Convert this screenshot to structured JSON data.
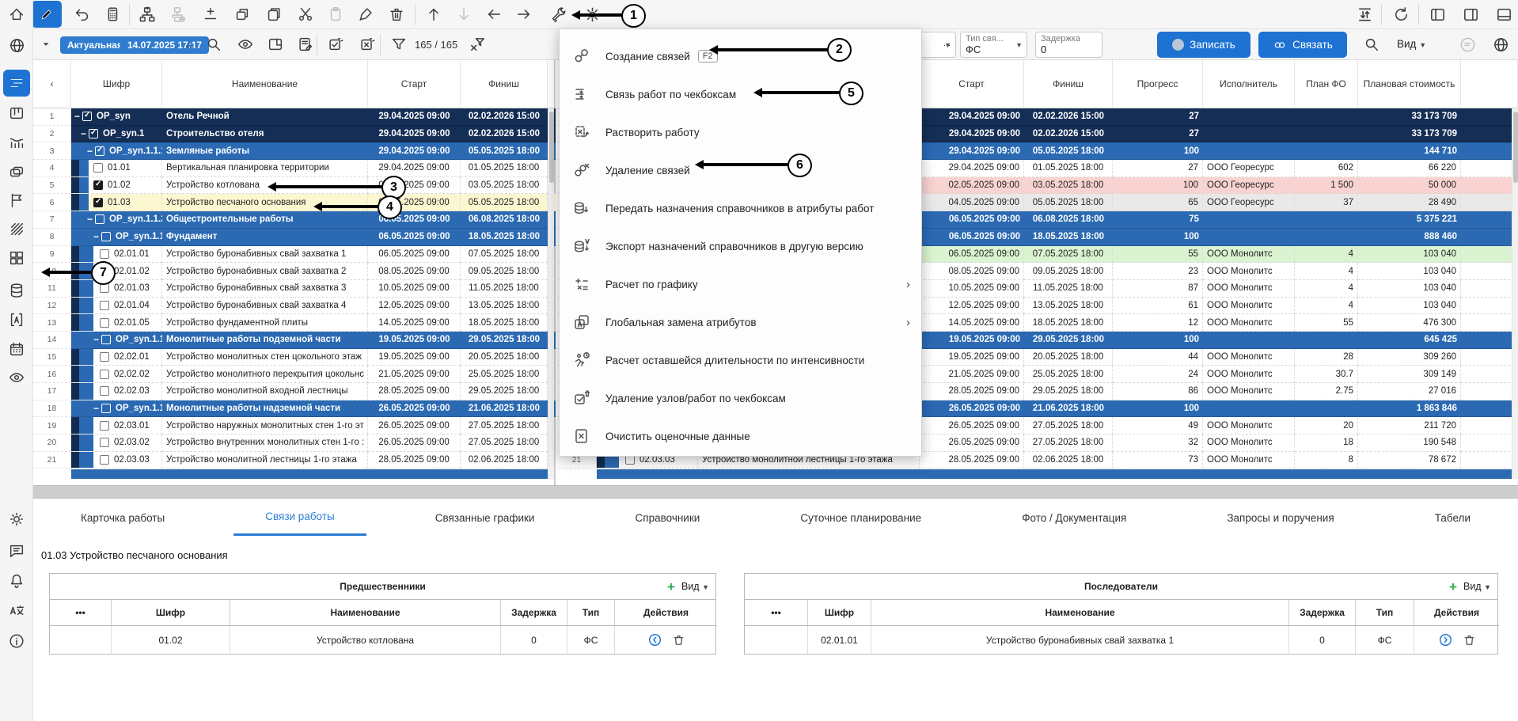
{
  "colors": {
    "accent": "#1d72d2",
    "row_dark": "#142e56",
    "row_group": "#2b6ab3",
    "highlight_yellow": "#fbf7d0",
    "highlight_pink": "#f8d3d1",
    "highlight_green": "#daf3d0",
    "highlight_gray": "#e9e9e9",
    "callout": "#000000"
  },
  "topbar": {
    "version_badge": "Актуальная",
    "date_badge": "14.07.2025 17:17",
    "truncated_label": "г...",
    "filter_count": "165 / 165",
    "combo_ellipsis": "...",
    "type_combo_label": "Тип свя...",
    "type_combo_value": "ФС",
    "delay_label": "Задержка",
    "delay_value": "0",
    "save_button": "Записать",
    "link_button": "Связать",
    "view_button": "Вид"
  },
  "menu": {
    "items": [
      {
        "label": "Создание связей",
        "shortcut": "F2",
        "icon": "chain",
        "submenu": false
      },
      {
        "label": "Связь работ по чекбоксам",
        "icon": "link-checkbox",
        "submenu": false
      },
      {
        "label": "Растворить работу",
        "icon": "dissolve",
        "submenu": false
      },
      {
        "label": "Удаление связей",
        "icon": "chain-x",
        "submenu": false
      },
      {
        "label": "Передать назначения справочников в атрибуты работ",
        "icon": "db-transfer",
        "submenu": false
      },
      {
        "label": "Экспорт назначений справочников в другую версию",
        "icon": "db-export",
        "submenu": false
      },
      {
        "label": "Расчет по графику",
        "icon": "calc-ops",
        "submenu": true
      },
      {
        "label": "Глобальная замена атрибутов",
        "icon": "replace-attr",
        "submenu": true
      },
      {
        "label": "Расчет оставшейся длительности по интенсивности",
        "icon": "runner-clock",
        "submenu": false
      },
      {
        "label": "Удаление узлов/работ по чекбоксам",
        "icon": "checkbox-trash",
        "submenu": false
      },
      {
        "label": "Очистить оценочные данные",
        "icon": "doc-clear",
        "submenu": false
      }
    ]
  },
  "table": {
    "left_headers": [
      "Шифр",
      "Наименование",
      "Старт",
      "Финиш"
    ],
    "right_headers": [
      "Старт",
      "Финиш",
      "Прогресс",
      "Исполнитель",
      "План ФО",
      "Плановая стоимость"
    ],
    "rows": [
      {
        "n": "1",
        "level": 0,
        "group": true,
        "checked": true,
        "code": "OP_syn",
        "name": "Отель Речной",
        "start": "29.04.2025 09:00",
        "finish": "02.02.2026 15:00",
        "progress": "27",
        "executor": "",
        "plan_fo": "",
        "cost": "33 173 709",
        "tone": "dark",
        "hl_left": "",
        "hl_right": ""
      },
      {
        "n": "2",
        "level": 1,
        "group": true,
        "checked": true,
        "code": "OP_syn.1",
        "name": "Строительство отеля",
        "start": "29.04.2025 09:00",
        "finish": "02.02.2026 15:00",
        "progress": "27",
        "executor": "",
        "plan_fo": "",
        "cost": "33 173 709",
        "tone": "dark",
        "hl_left": "",
        "hl_right": ""
      },
      {
        "n": "3",
        "level": 2,
        "group": true,
        "checked": true,
        "code": "OP_syn.1.1.1",
        "name": "Земляные работы",
        "start": "29.04.2025 09:00",
        "finish": "05.05.2025 18:00",
        "progress": "100",
        "executor": "",
        "plan_fo": "",
        "cost": "144 710",
        "tone": "mid",
        "hl_left": "",
        "hl_right": ""
      },
      {
        "n": "4",
        "level": 3,
        "group": false,
        "checked": false,
        "code": "01.01",
        "name": "Вертикальная планировка территории",
        "start": "29.04.2025 09:00",
        "finish": "01.05.2025 18:00",
        "progress": "27",
        "executor": "ООО Георесурс",
        "plan_fo": "602",
        "cost": "66 220",
        "tone": "",
        "hl_left": "",
        "hl_right": ""
      },
      {
        "n": "5",
        "level": 3,
        "group": false,
        "checked": true,
        "code": "01.02",
        "name": "Устройство котлована",
        "start": "02.05.2025 09:00",
        "finish": "03.05.2025 18:00",
        "progress": "100",
        "executor": "ООО Георесурс",
        "plan_fo": "1 500",
        "cost": "50 000",
        "tone": "",
        "hl_left": "",
        "hl_right": "pink"
      },
      {
        "n": "6",
        "level": 3,
        "group": false,
        "checked": true,
        "code": "01.03",
        "name": "Устройство песчаного основания",
        "start": "04.05.2025 09:00",
        "finish": "05.05.2025 18:00",
        "progress": "65",
        "executor": "ООО Георесурс",
        "plan_fo": "37",
        "cost": "28 490",
        "tone": "",
        "hl_left": "yellow",
        "hl_right": "gray"
      },
      {
        "n": "7",
        "level": 2,
        "group": true,
        "checked": false,
        "code": "OP_syn.1.1.2",
        "name": "Общестроительные работы",
        "start": "06.05.2025 09:00",
        "finish": "06.08.2025 18:00",
        "progress": "75",
        "executor": "",
        "plan_fo": "",
        "cost": "5 375 221",
        "tone": "mid",
        "hl_left": "",
        "hl_right": ""
      },
      {
        "n": "8",
        "level": 3,
        "group": true,
        "checked": false,
        "code": "OP_syn.1.1.:",
        "name": "Фундамент",
        "start": "06.05.2025 09:00",
        "finish": "18.05.2025 18:00",
        "progress": "100",
        "executor": "",
        "plan_fo": "",
        "cost": "888 460",
        "tone": "mid",
        "hl_left": "",
        "hl_right": ""
      },
      {
        "n": "9",
        "level": 4,
        "group": false,
        "checked": false,
        "code": "02.01.01",
        "name": "Устройство буронабивных свай захватка 1",
        "start": "06.05.2025 09:00",
        "finish": "07.05.2025 18:00",
        "progress": "55",
        "executor": "ООО Монолитс",
        "plan_fo": "4",
        "cost": "103 040",
        "tone": "",
        "hl_left": "",
        "hl_right": "green"
      },
      {
        "n": "10",
        "level": 4,
        "group": false,
        "checked": false,
        "code": "02.01.02",
        "name": "Устройство буронабивных свай захватка 2",
        "start": "08.05.2025 09:00",
        "finish": "09.05.2025 18:00",
        "progress": "23",
        "executor": "ООО Монолитс",
        "plan_fo": "4",
        "cost": "103 040",
        "tone": "",
        "hl_left": "",
        "hl_right": ""
      },
      {
        "n": "11",
        "level": 4,
        "group": false,
        "checked": false,
        "code": "02.01.03",
        "name": "Устройство буронабивных свай захватка 3",
        "start": "10.05.2025 09:00",
        "finish": "11.05.2025 18:00",
        "progress": "87",
        "executor": "ООО Монолитс",
        "plan_fo": "4",
        "cost": "103 040",
        "tone": "",
        "hl_left": "",
        "hl_right": ""
      },
      {
        "n": "12",
        "level": 4,
        "group": false,
        "checked": false,
        "code": "02.01.04",
        "name": "Устройство буронабивных свай захватка 4",
        "start": "12.05.2025 09:00",
        "finish": "13.05.2025 18:00",
        "progress": "61",
        "executor": "ООО Монолитс",
        "plan_fo": "4",
        "cost": "103 040",
        "tone": "",
        "hl_left": "",
        "hl_right": ""
      },
      {
        "n": "13",
        "level": 4,
        "group": false,
        "checked": false,
        "code": "02.01.05",
        "name": "Устройство фундаментной плиты",
        "start": "14.05.2025 09:00",
        "finish": "18.05.2025 18:00",
        "progress": "12",
        "executor": "ООО Монолитс",
        "plan_fo": "55",
        "cost": "476 300",
        "tone": "",
        "hl_left": "",
        "hl_right": ""
      },
      {
        "n": "14",
        "level": 3,
        "group": true,
        "checked": false,
        "code": "OP_syn.1.1.:",
        "name": "Монолитные работы подземной части",
        "start": "19.05.2025 09:00",
        "finish": "29.05.2025 18:00",
        "progress": "100",
        "executor": "",
        "plan_fo": "",
        "cost": "645 425",
        "tone": "mid",
        "hl_left": "",
        "hl_right": ""
      },
      {
        "n": "15",
        "level": 4,
        "group": false,
        "checked": false,
        "code": "02.02.01",
        "name": "Устройство монолитных стен цокольного этаж",
        "start": "19.05.2025 09:00",
        "finish": "20.05.2025 18:00",
        "progress": "44",
        "executor": "ООО Монолитс",
        "plan_fo": "28",
        "cost": "309 260",
        "tone": "",
        "hl_left": "",
        "hl_right": ""
      },
      {
        "n": "16",
        "level": 4,
        "group": false,
        "checked": false,
        "code": "02.02.02",
        "name": "Устройство монолитного перекрытия цокольнс",
        "start": "21.05.2025 09:00",
        "finish": "25.05.2025 18:00",
        "progress": "24",
        "executor": "ООО Монолитс",
        "plan_fo": "30.7",
        "cost": "309 149",
        "tone": "",
        "hl_left": "",
        "hl_right": ""
      },
      {
        "n": "17",
        "level": 4,
        "group": false,
        "checked": false,
        "code": "02.02.03",
        "name": "Устройство монолитной входной лестницы",
        "start": "28.05.2025 09:00",
        "finish": "29.05.2025 18:00",
        "progress": "86",
        "executor": "ООО Монолитс",
        "plan_fo": "2.75",
        "cost": "27 016",
        "tone": "",
        "hl_left": "",
        "hl_right": ""
      },
      {
        "n": "18",
        "level": 3,
        "group": true,
        "checked": false,
        "code": "OP_syn.1.1.:",
        "name": "Монолитные работы надземной части",
        "start": "26.05.2025 09:00",
        "finish": "21.06.2025 18:00",
        "progress": "100",
        "executor": "",
        "plan_fo": "",
        "cost": "1 863 846",
        "tone": "mid",
        "hl_left": "",
        "hl_right": ""
      },
      {
        "n": "19",
        "level": 4,
        "group": false,
        "checked": false,
        "code": "02.03.01",
        "name": "Устройство наружных монолитных стен 1-го эт",
        "start": "26.05.2025 09:00",
        "finish": "27.05.2025 18:00",
        "progress": "49",
        "executor": "ООО Монолитс",
        "plan_fo": "20",
        "cost": "211 720",
        "tone": "",
        "hl_left": "",
        "hl_right": ""
      },
      {
        "n": "20",
        "level": 4,
        "group": false,
        "checked": false,
        "code": "02.03.02",
        "name": "Устройство внутренних монолитных стен 1-го :",
        "start": "26.05.2025 09:00",
        "finish": "27.05.2025 18:00",
        "progress": "32",
        "executor": "ООО Монолитс",
        "plan_fo": "18",
        "cost": "190 548",
        "tone": "",
        "hl_left": "",
        "hl_right": ""
      },
      {
        "n": "21",
        "level": 4,
        "group": false,
        "checked": false,
        "code": "02.03.03",
        "name": "Устройство монолитной лестницы 1-го этажа",
        "start": "28.05.2025 09:00",
        "finish": "02.06.2025 18:00",
        "progress": "73",
        "executor": "ООО Монолитс",
        "plan_fo": "8",
        "cost": "78 672",
        "tone": "",
        "hl_left": "",
        "hl_right": ""
      }
    ]
  },
  "tabs": [
    {
      "label": "Карточка работы",
      "active": false
    },
    {
      "label": "Связи работы",
      "active": true
    },
    {
      "label": "Связанные графики",
      "active": false
    },
    {
      "label": "Справочники",
      "active": false
    },
    {
      "label": "Суточное планирование",
      "active": false
    },
    {
      "label": "Фото / Документация",
      "active": false
    },
    {
      "label": "Запросы и поручения",
      "active": false
    },
    {
      "label": "Табели",
      "active": false
    }
  ],
  "work_title": "01.03 Устройство песчаного основания",
  "links_panel": {
    "predecessors": {
      "title": "Предшественники",
      "add_label": "+",
      "view_label": "Вид",
      "headers": [
        "•••",
        "Шифр",
        "Наименование",
        "Задержка",
        "Тип",
        "Действия"
      ],
      "rows": [
        {
          "code": "01.02",
          "name": "Устройство котлована",
          "delay": "0",
          "type": "ФС"
        }
      ]
    },
    "successors": {
      "title": "Последователи",
      "add_label": "+",
      "view_label": "Вид",
      "headers": [
        "•••",
        "Шифр",
        "Наименование",
        "Задержка",
        "Тип",
        "Действия"
      ],
      "rows": [
        {
          "code": "02.01.01",
          "name": "Устройство буронабивных свай захватка 1",
          "delay": "0",
          "type": "ФС"
        }
      ]
    }
  },
  "callouts": [
    "1",
    "2",
    "3",
    "4",
    "5",
    "6",
    "7"
  ]
}
